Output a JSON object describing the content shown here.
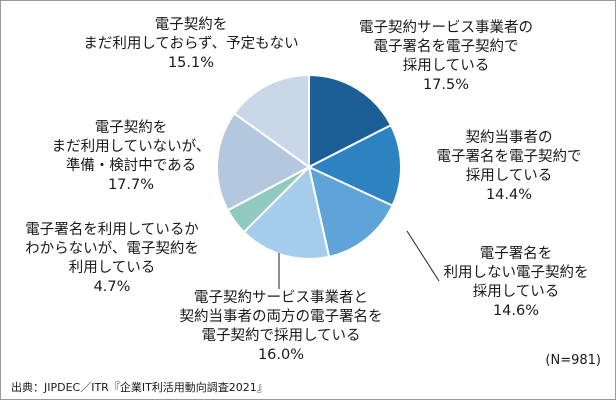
{
  "chart_data": {
    "type": "pie",
    "total_label": "(N=981)",
    "source": "出典：JIPDEC／ITR『企業IT利活用動向調査2021』",
    "slices": [
      {
        "label_lines": [
          "電子契約サービス事業者の",
          "電子署名を電子契約で",
          "採用している"
        ],
        "value_label": "17.5%",
        "value": 17.5,
        "color": "#1b5f96"
      },
      {
        "label_lines": [
          "契約当事者の",
          "電子署名を電子契約で",
          "採用している"
        ],
        "value_label": "14.4%",
        "value": 14.4,
        "color": "#2d83c1"
      },
      {
        "label_lines": [
          "電子署名を",
          "利用しない電子契約を",
          "採用している"
        ],
        "value_label": "14.6%",
        "value": 14.6,
        "color": "#5ea4d8"
      },
      {
        "label_lines": [
          "電子契約サービス事業者と",
          "契約当事者の両方の電子署名を",
          "電子契約で採用している"
        ],
        "value_label": "16.0%",
        "value": 16.0,
        "color": "#a5cdeb"
      },
      {
        "label_lines": [
          "電子署名を利用しているか",
          "わからないが、電子契約を",
          "利用している"
        ],
        "value_label": "4.7%",
        "value": 4.7,
        "color": "#8fc9c0"
      },
      {
        "label_lines": [
          "電子契約を",
          "まだ利用していないが、",
          "準備・検討中である"
        ],
        "value_label": "17.7%",
        "value": 17.7,
        "color": "#b3c7df"
      },
      {
        "label_lines": [
          "電子契約を",
          "まだ利用しておらず、予定もない"
        ],
        "value_label": "15.1%",
        "value": 15.1,
        "color": "#c9d7e6"
      }
    ]
  }
}
